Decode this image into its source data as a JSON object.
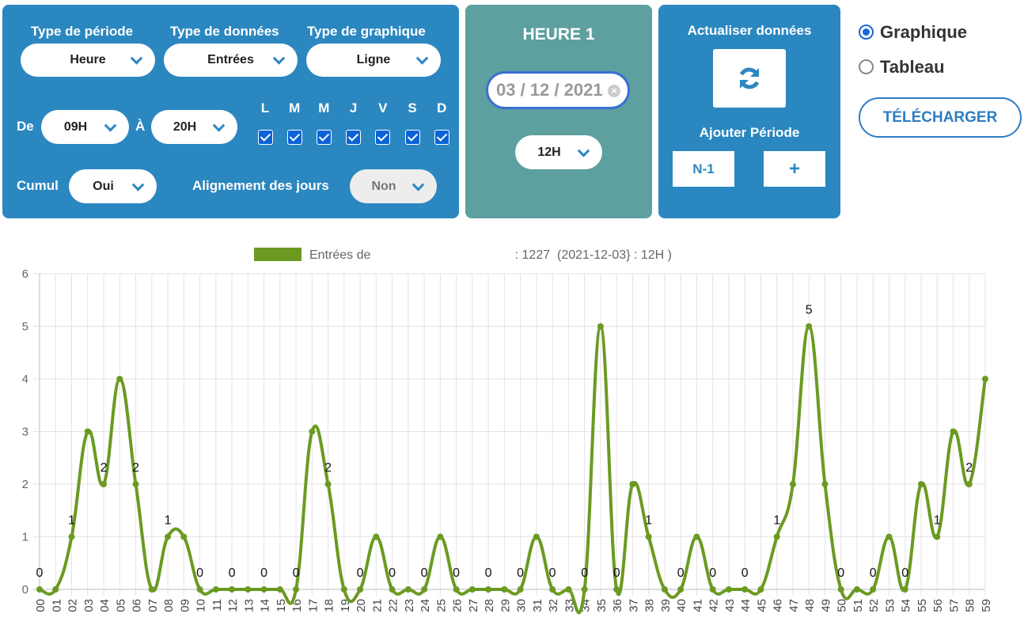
{
  "ui": {
    "filters": {
      "period_type": {
        "label": "Type de période",
        "value": "Heure"
      },
      "data_type": {
        "label": "Type de données",
        "value": "Entrées"
      },
      "chart_type": {
        "label": "Type de graphique",
        "value": "Ligne"
      },
      "from": {
        "label": "De",
        "value": "09H"
      },
      "to": {
        "label": "À",
        "value": "20H"
      },
      "days": [
        "L",
        "M",
        "M",
        "J",
        "V",
        "S",
        "D"
      ],
      "cumul": {
        "label": "Cumul",
        "value": "Oui"
      },
      "alignment": {
        "label": "Alignement des jours",
        "value": "Non"
      }
    },
    "period": {
      "title": "HEURE 1",
      "date": "03 / 12 / 2021",
      "hour": "12H"
    },
    "actions": {
      "refresh": "Actualiser données",
      "add_period": "Ajouter Période",
      "previous": "N-1",
      "add": "+"
    },
    "view": {
      "options": [
        "Graphique",
        "Tableau"
      ],
      "download": "TÉLÉCHARGER"
    }
  },
  "chart_data": {
    "type": "line",
    "categories": [
      "00",
      "01",
      "02",
      "03",
      "04",
      "05",
      "06",
      "07",
      "08",
      "09",
      "10",
      "11",
      "12",
      "13",
      "14",
      "15",
      "16",
      "17",
      "18",
      "19",
      "20",
      "21",
      "22",
      "23",
      "24",
      "25",
      "26",
      "27",
      "28",
      "29",
      "30",
      "31",
      "32",
      "33",
      "34",
      "35",
      "36",
      "37",
      "38",
      "39",
      "40",
      "41",
      "42",
      "43",
      "44",
      "45",
      "46",
      "47",
      "48",
      "49",
      "50",
      "51",
      "52",
      "53",
      "54",
      "55",
      "56",
      "57",
      "58",
      "59"
    ],
    "series": [
      {
        "name": "Entrées de                                         : 1227  (2021-12-03} : 12H )",
        "color": "#6b9a22",
        "values": [
          0,
          0,
          1,
          3,
          2,
          4,
          2,
          0,
          1,
          1,
          0,
          0,
          0,
          0,
          0,
          0,
          0,
          3,
          2,
          0,
          0,
          1,
          0,
          0,
          0,
          1,
          0,
          0,
          0,
          0,
          0,
          1,
          0,
          0,
          0,
          5,
          0,
          2,
          1,
          0,
          0,
          1,
          0,
          0,
          0,
          0,
          1,
          2,
          5,
          2,
          0,
          0,
          0,
          1,
          0,
          2,
          1,
          3,
          2,
          4
        ]
      }
    ],
    "ylim": [
      0,
      6
    ],
    "yticks": [
      0,
      1,
      2,
      3,
      4,
      5,
      6
    ],
    "grid": true,
    "data_label_interval": 2
  }
}
